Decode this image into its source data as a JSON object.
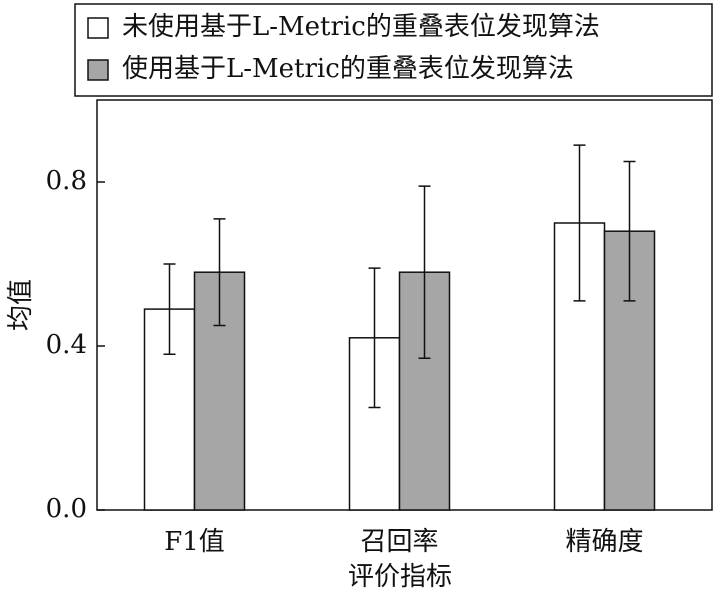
{
  "chart_data": {
    "type": "bar",
    "xlabel": "评价指标",
    "ylabel": "均值",
    "categories": [
      "F1值",
      "召回率",
      "精确度"
    ],
    "series": [
      {
        "name": "未使用基于L-Metric的重叠表位发现算法",
        "color": "#ffffff",
        "values": [
          0.49,
          0.42,
          0.7
        ],
        "errors": [
          0.11,
          0.17,
          0.19
        ]
      },
      {
        "name": "使用基于L-Metric的重叠表位发现算法",
        "color": "#a6a6a6",
        "values": [
          0.58,
          0.58,
          0.68
        ],
        "errors": [
          0.13,
          0.21,
          0.17
        ]
      }
    ],
    "ylim": [
      0,
      1
    ],
    "yticks": [
      {
        "value": 0,
        "label": "0.0"
      },
      0.4,
      0.8
    ],
    "legend": "top"
  }
}
